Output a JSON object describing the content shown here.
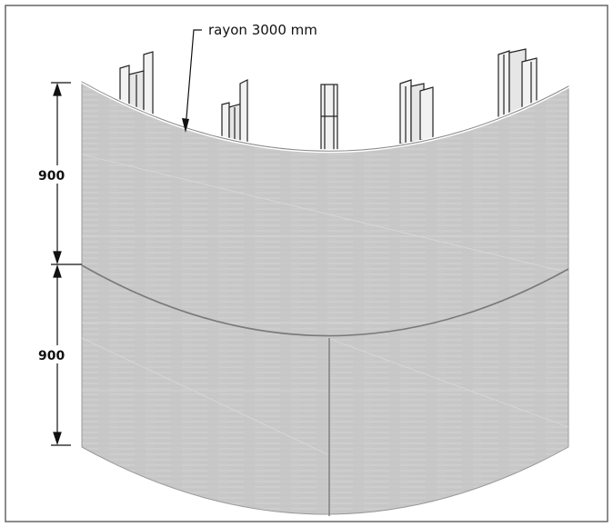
{
  "annotation": {
    "radius_label": "rayon 3000 mm"
  },
  "dimensions": [
    {
      "id": "upper-height",
      "label": "900"
    },
    {
      "id": "lower-height",
      "label": "900"
    }
  ],
  "colors": {
    "panel": "#c8c8c8",
    "panel_edge": "#7a7a7a",
    "line": "#222222",
    "stud_fill": "#f2f2f2",
    "frame": "#666666"
  },
  "icons": [
    "radius-leader-arrow",
    "dimension-arrow",
    "steel-stud"
  ]
}
